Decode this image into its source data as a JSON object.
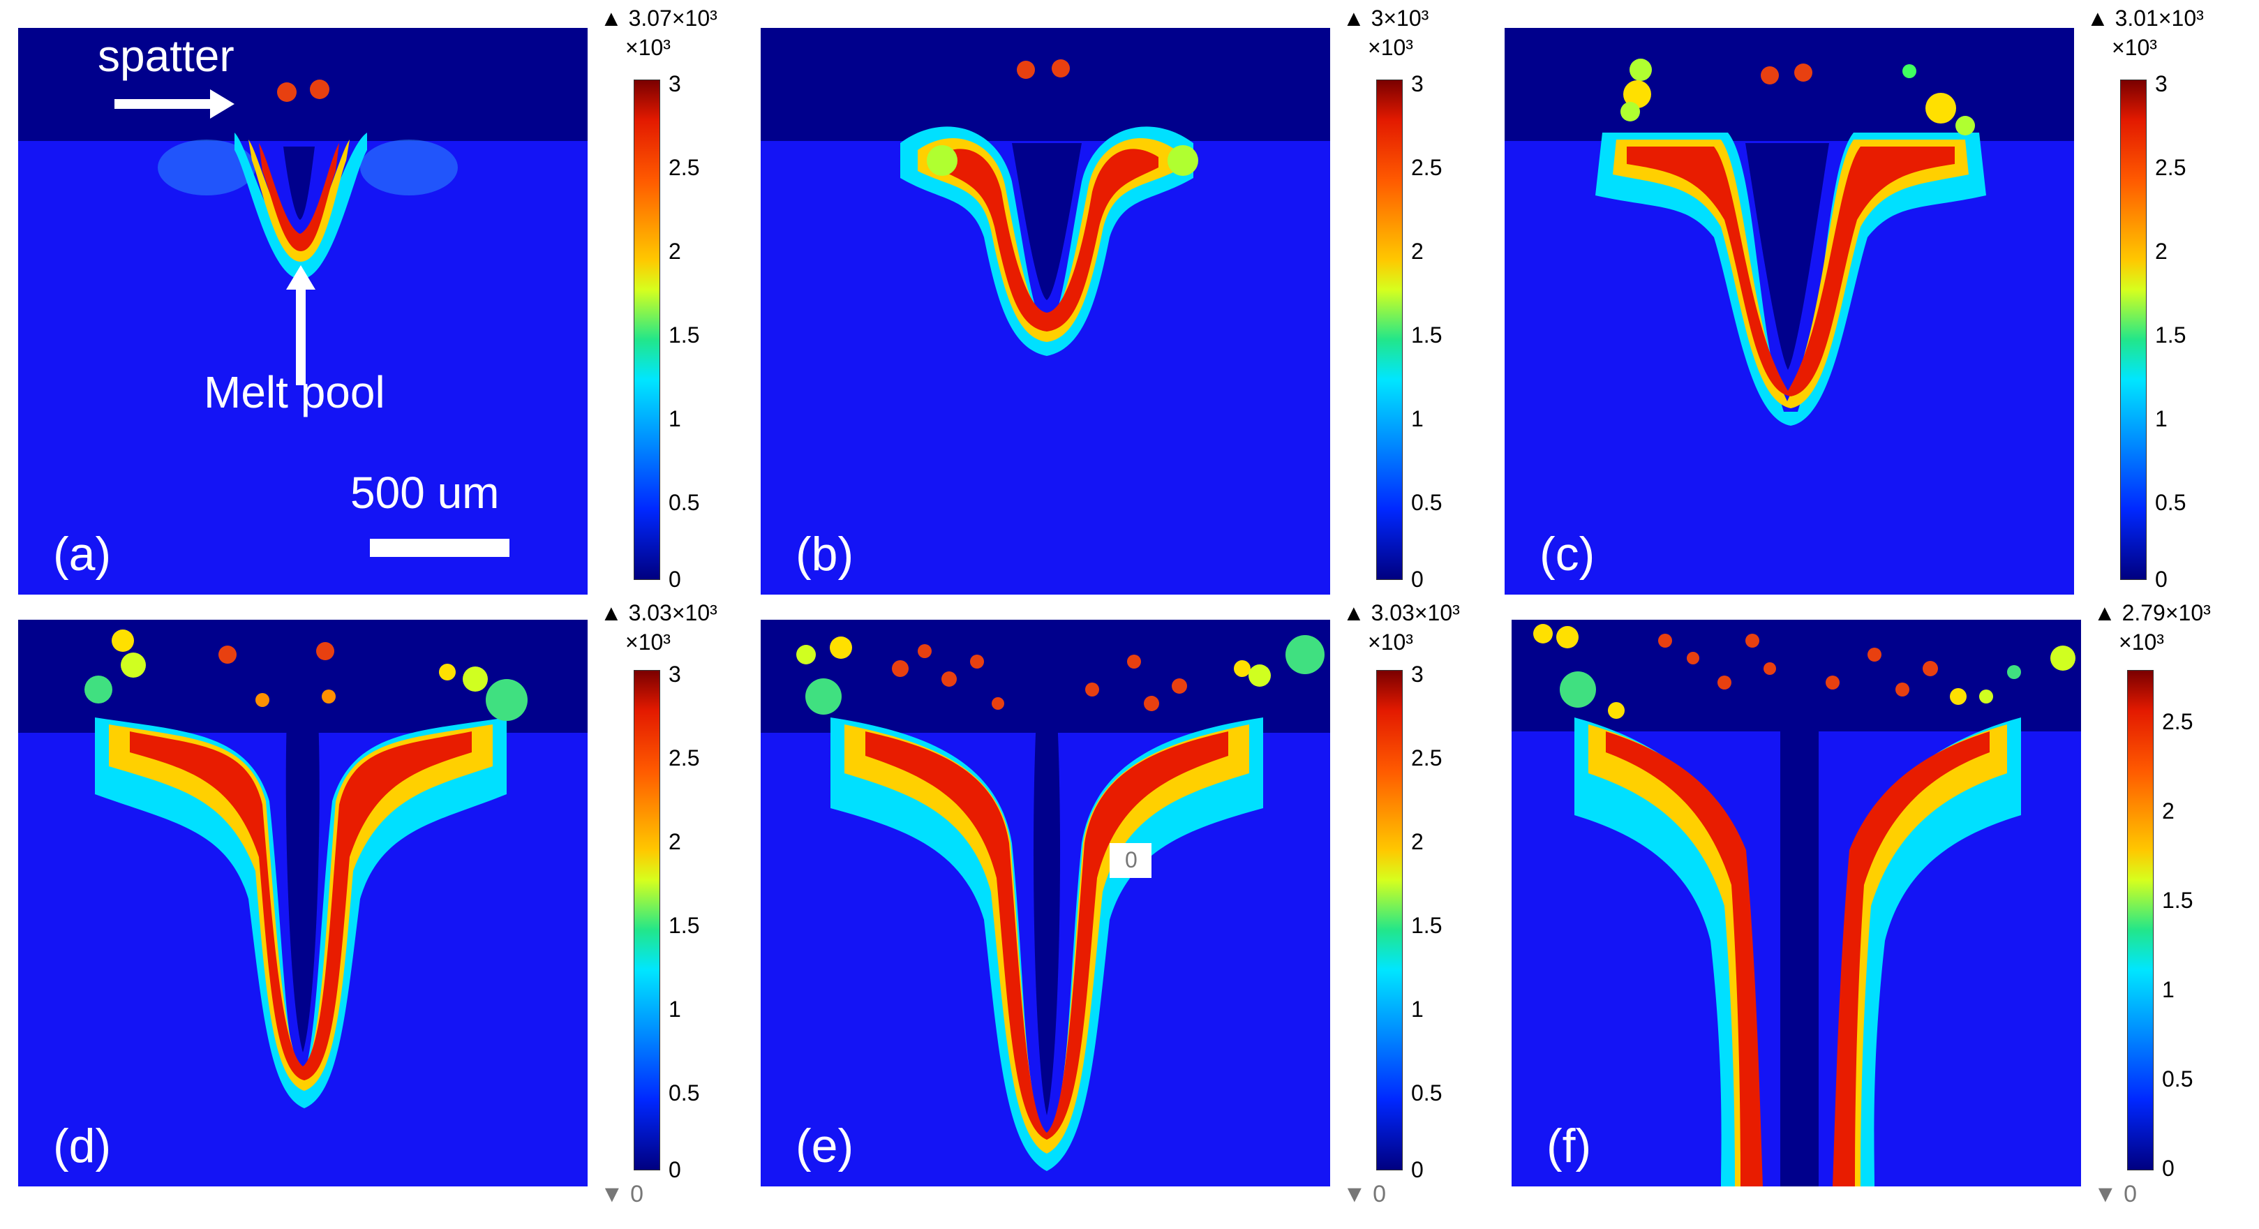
{
  "panels": [
    {
      "label": "(a)",
      "max_label": "▲ 3.07×10³"
    },
    {
      "label": "(b)",
      "max_label": "▲ 3×10³"
    },
    {
      "label": "(c)",
      "max_label": "▲ 3.01×10³"
    },
    {
      "label": "(d)",
      "max_label": "▲ 3.03×10³",
      "min_label": "▼ 0"
    },
    {
      "label": "(e)",
      "max_label": "▲ 3.03×10³",
      "min_label": "▼ 0"
    },
    {
      "label": "(f)",
      "max_label": "▲ 2.79×10³",
      "min_label": "▼ 0"
    }
  ],
  "colorbar": {
    "unit": "×10³",
    "ticks": [
      "3",
      "2.5",
      "2",
      "1.5",
      "1",
      "0.5",
      "0"
    ]
  },
  "colorbar_f": {
    "ticks": [
      "2.5",
      "2",
      "1.5",
      "1",
      "0.5",
      "0"
    ]
  },
  "annotations": {
    "spatter": "spatter",
    "melt_pool": "Melt pool",
    "scale_bar": "500 um",
    "probe_value": "0"
  },
  "colors": {
    "air": "#00008c",
    "substrate": "#1414f5",
    "hot": "#e81c00"
  }
}
